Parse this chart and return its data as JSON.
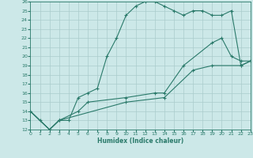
{
  "xlabel": "Humidex (Indice chaleur)",
  "xlim": [
    0,
    23
  ],
  "ylim": [
    12,
    26
  ],
  "xticks": [
    0,
    1,
    2,
    3,
    4,
    5,
    6,
    7,
    8,
    9,
    10,
    11,
    12,
    13,
    14,
    15,
    16,
    17,
    18,
    19,
    20,
    21,
    22,
    23
  ],
  "yticks": [
    12,
    13,
    14,
    15,
    16,
    17,
    18,
    19,
    20,
    21,
    22,
    23,
    24,
    25,
    26
  ],
  "bg_color": "#cce8e8",
  "line_color": "#2a7a6a",
  "grid_color": "#aacccc",
  "line1_x": [
    0,
    1,
    2,
    3,
    4,
    5,
    6,
    7,
    8,
    9,
    10,
    11,
    12,
    13,
    14,
    15,
    16,
    17,
    18,
    19,
    20,
    21,
    22,
    23
  ],
  "line1_y": [
    14,
    13,
    12,
    13,
    13,
    15.5,
    16,
    16.5,
    20,
    22,
    24.5,
    25.5,
    26,
    26,
    25.5,
    25,
    24.5,
    25,
    25,
    24.5,
    24.5,
    25,
    19,
    19.5
  ],
  "line2_x": [
    0,
    2,
    3,
    5,
    6,
    10,
    13,
    14,
    16,
    19,
    20,
    21,
    22,
    23
  ],
  "line2_y": [
    14,
    12,
    13,
    14,
    15,
    15.5,
    16,
    16,
    19,
    21.5,
    22,
    20,
    19.5,
    19.5
  ],
  "line3_x": [
    0,
    2,
    3,
    10,
    14,
    17,
    19,
    22,
    23
  ],
  "line3_y": [
    14,
    12,
    13,
    15,
    15.5,
    18.5,
    19,
    19,
    19.5
  ]
}
